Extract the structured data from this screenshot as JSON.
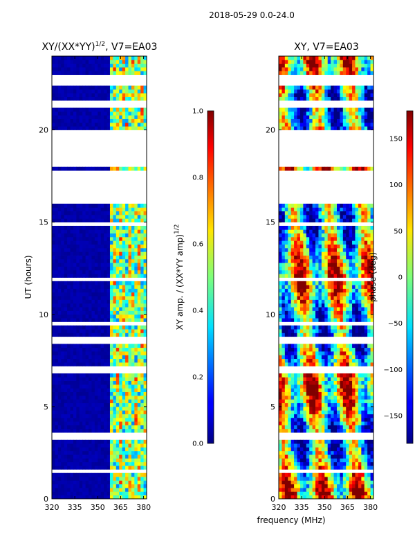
{
  "chart_data": [
    {
      "type": "heatmap",
      "title": "XY/(XX*YY)",
      "title_exponent": "1/2",
      "title_suffix": ", V7=EA03",
      "xlabel": "frequency (MHz)",
      "ylabel": "UT (hours)",
      "xlim": [
        320,
        382
      ],
      "ylim": [
        0,
        24
      ],
      "xticks": [
        "320",
        "335",
        "350",
        "365",
        "380"
      ],
      "yticks": [
        "0",
        "5",
        "10",
        "15",
        "20"
      ],
      "colorbar": {
        "label": "XY amp. / (XX*YY amp)",
        "label_exponent": "1/2",
        "range": [
          0.0,
          1.0
        ],
        "ticks": [
          "0.0",
          "0.2",
          "0.4",
          "0.6",
          "0.8",
          "1.0"
        ]
      },
      "band_start_mhz": 359,
      "description": "normalized amplitude, mostly near 0 below 359 MHz with higher values 359-380 MHz"
    },
    {
      "type": "heatmap",
      "title": "XY, V7=EA03",
      "xlabel": "frequency (MHz)",
      "ylabel": "",
      "xlim": [
        320,
        382
      ],
      "ylim": [
        0,
        24
      ],
      "xticks": [
        "320",
        "335",
        "350",
        "365",
        "380"
      ],
      "yticks": [
        "0",
        "5",
        "10",
        "15",
        "20"
      ],
      "colorbar": {
        "label": "phase (deg)",
        "range": [
          -180,
          180
        ],
        "ticks": [
          "−150",
          "−100",
          "−50",
          "0",
          "50",
          "100",
          "150"
        ],
        "tick_values": [
          -150,
          -100,
          -50,
          0,
          50,
          100,
          150
        ]
      }
    }
  ],
  "suptitle": "2018-05-29 0.0-24.0",
  "xlabel_shared": "frequency (MHz)",
  "flagged_time_ranges_hours": [
    [
      18.0,
      20.0
    ],
    [
      21.2,
      21.6
    ],
    [
      22.5,
      23.0
    ],
    [
      16.0,
      17.8
    ],
    [
      6.8,
      7.2
    ],
    [
      14.8,
      15.0
    ],
    [
      3.3,
      3.5
    ],
    [
      8.5,
      8.7
    ],
    [
      11.8,
      12.0
    ],
    [
      0.9,
      1.0
    ],
    [
      1.4,
      1.5
    ],
    [
      5.9,
      6.0
    ],
    [
      9.4,
      9.5
    ]
  ]
}
